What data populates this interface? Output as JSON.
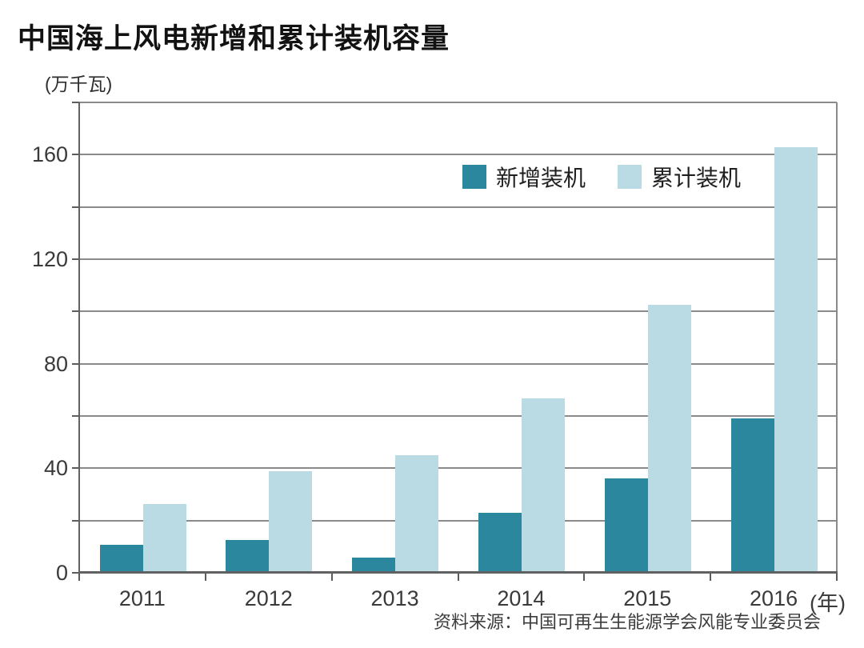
{
  "title": "中国海上风电新增和累计装机容量",
  "y_axis_unit": "(万千瓦)",
  "x_axis_unit": "(年)",
  "source": "资料来源：中国可再生生能源学会风能专业委员会",
  "colors": {
    "new_installed": "#2b879e",
    "cumulative_installed": "#badbe4",
    "gridline": "#8a8a8a",
    "axis": "#5f6163",
    "text": "#3a3a3a"
  },
  "chart_data": {
    "type": "bar",
    "title": "中国海上风电新增和累计装机容量",
    "ylabel": "(万千瓦)",
    "xlabel": "(年)",
    "categories": [
      "2011",
      "2012",
      "2013",
      "2014",
      "2015",
      "2016"
    ],
    "series": [
      {
        "name": "新增装机",
        "key": "new",
        "color": "#2b879e",
        "values": [
          10.8,
          12.7,
          5.9,
          22.9,
          36.1,
          59.0
        ]
      },
      {
        "name": "累计装机",
        "key": "cumulative",
        "color": "#badbe4",
        "values": [
          26.3,
          39.0,
          44.9,
          66.6,
          102.6,
          162.9
        ]
      }
    ],
    "ylim": [
      0,
      180
    ],
    "gridline_step": 20,
    "ytick_label_step": 40,
    "ytick_labels": [
      "0",
      "40",
      "80",
      "120",
      "160"
    ],
    "grid": "horizontal",
    "legend_position": "top-right-inside"
  }
}
